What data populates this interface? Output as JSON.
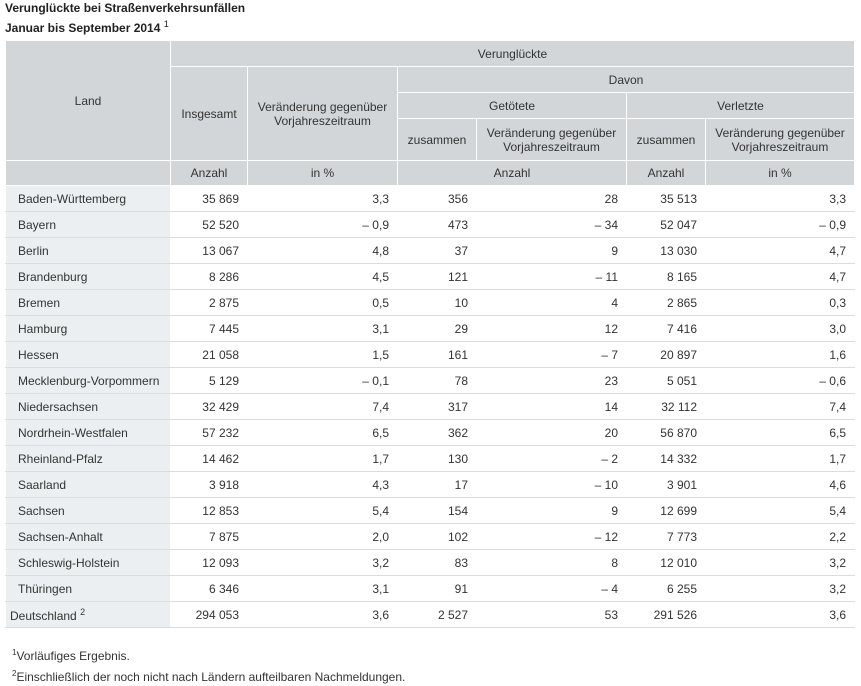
{
  "caption": {
    "line1": "Verunglückte bei Straßenverkehrsunfällen",
    "line2": "Januar bis September 2014",
    "line2_sup": "1"
  },
  "header": {
    "land": "Land",
    "verunglueckte": "Verunglückte",
    "davon": "Davon",
    "insgesamt": "Insgesamt",
    "veraenderung": "Veränderung gegenüber Vorjahreszeitraum",
    "getoetete": "Getötete",
    "verletzte": "Verletzte",
    "zusammen": "zusammen",
    "anzahl": "Anzahl",
    "in_prozent": "in %"
  },
  "rows": [
    {
      "land": "Baden-Württemberg",
      "insgesamt": "35 869",
      "ver_pct": "3,3",
      "get_zus": "356",
      "get_ver": "28",
      "verl_zus": "35 513",
      "verl_pct": "3,3"
    },
    {
      "land": "Bayern",
      "insgesamt": "52 520",
      "ver_pct": "– 0,9",
      "get_zus": "473",
      "get_ver": "– 34",
      "verl_zus": "52 047",
      "verl_pct": "– 0,9"
    },
    {
      "land": "Berlin",
      "insgesamt": "13 067",
      "ver_pct": "4,8",
      "get_zus": "37",
      "get_ver": "9",
      "verl_zus": "13 030",
      "verl_pct": "4,7"
    },
    {
      "land": "Brandenburg",
      "insgesamt": "8 286",
      "ver_pct": "4,5",
      "get_zus": "121",
      "get_ver": "– 11",
      "verl_zus": "8 165",
      "verl_pct": "4,7"
    },
    {
      "land": "Bremen",
      "insgesamt": "2 875",
      "ver_pct": "0,5",
      "get_zus": "10",
      "get_ver": "4",
      "verl_zus": "2 865",
      "verl_pct": "0,3"
    },
    {
      "land": "Hamburg",
      "insgesamt": "7 445",
      "ver_pct": "3,1",
      "get_zus": "29",
      "get_ver": "12",
      "verl_zus": "7 416",
      "verl_pct": "3,0"
    },
    {
      "land": "Hessen",
      "insgesamt": "21 058",
      "ver_pct": "1,5",
      "get_zus": "161",
      "get_ver": "– 7",
      "verl_zus": "20 897",
      "verl_pct": "1,6"
    },
    {
      "land": "Mecklenburg-Vorpommern",
      "insgesamt": "5 129",
      "ver_pct": "– 0,1",
      "get_zus": "78",
      "get_ver": "23",
      "verl_zus": "5 051",
      "verl_pct": "– 0,6"
    },
    {
      "land": "Niedersachsen",
      "insgesamt": "32 429",
      "ver_pct": "7,4",
      "get_zus": "317",
      "get_ver": "14",
      "verl_zus": "32 112",
      "verl_pct": "7,4"
    },
    {
      "land": "Nordrhein-Westfalen",
      "insgesamt": "57 232",
      "ver_pct": "6,5",
      "get_zus": "362",
      "get_ver": "20",
      "verl_zus": "56 870",
      "verl_pct": "6,5"
    },
    {
      "land": "Rheinland-Pfalz",
      "insgesamt": "14 462",
      "ver_pct": "1,7",
      "get_zus": "130",
      "get_ver": "– 2",
      "verl_zus": "14 332",
      "verl_pct": "1,7"
    },
    {
      "land": "Saarland",
      "insgesamt": "3 918",
      "ver_pct": "4,3",
      "get_zus": "17",
      "get_ver": "– 10",
      "verl_zus": "3 901",
      "verl_pct": "4,6"
    },
    {
      "land": "Sachsen",
      "insgesamt": "12 853",
      "ver_pct": "5,4",
      "get_zus": "154",
      "get_ver": "9",
      "verl_zus": "12 699",
      "verl_pct": "5,4"
    },
    {
      "land": "Sachsen-Anhalt",
      "insgesamt": "7 875",
      "ver_pct": "2,0",
      "get_zus": "102",
      "get_ver": "– 12",
      "verl_zus": "7 773",
      "verl_pct": "2,2"
    },
    {
      "land": "Schleswig-Holstein",
      "insgesamt": "12 093",
      "ver_pct": "3,2",
      "get_zus": "83",
      "get_ver": "8",
      "verl_zus": "12 010",
      "verl_pct": "3,2"
    },
    {
      "land": "Thüringen",
      "insgesamt": "6 346",
      "ver_pct": "3,1",
      "get_zus": "91",
      "get_ver": "– 4",
      "verl_zus": "6 255",
      "verl_pct": "3,2"
    }
  ],
  "total": {
    "land": "Deutschland",
    "land_sup": "2",
    "insgesamt": "294 053",
    "ver_pct": "3,6",
    "get_zus": "2 527",
    "get_ver": "53",
    "verl_zus": "291 526",
    "verl_pct": "3,6"
  },
  "footnotes": [
    {
      "sup": "1",
      "text": "Vorläufiges Ergebnis."
    },
    {
      "sup": "2",
      "text": "Einschließlich der noch nicht nach Ländern aufteilbaren Nachmeldungen."
    }
  ]
}
